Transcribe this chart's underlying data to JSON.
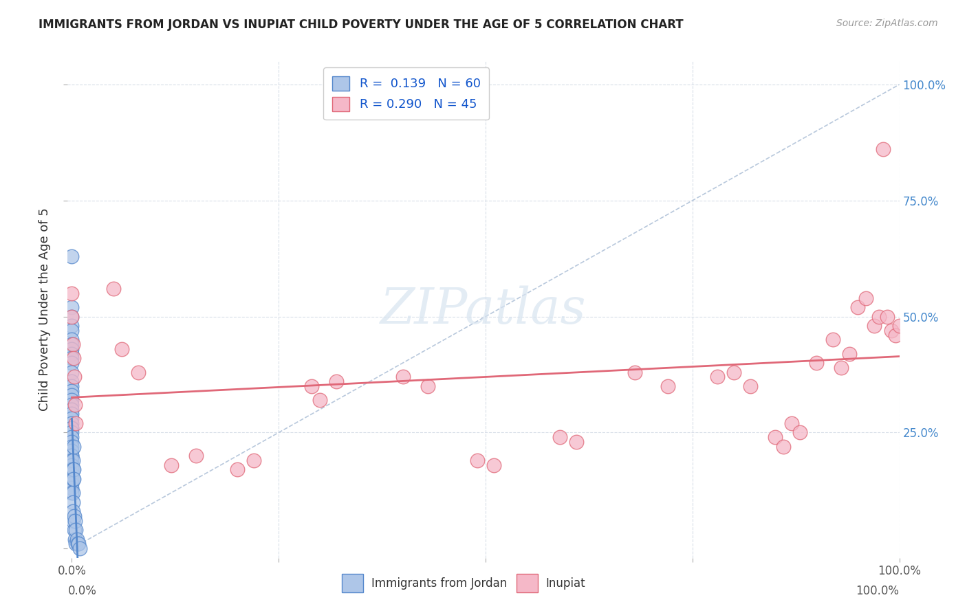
{
  "title": "IMMIGRANTS FROM JORDAN VS INUPIAT CHILD POVERTY UNDER THE AGE OF 5 CORRELATION CHART",
  "source": "Source: ZipAtlas.com",
  "ylabel": "Child Poverty Under the Age of 5",
  "legend_label1": "Immigrants from Jordan",
  "legend_label2": "Inupiat",
  "legend_R1": "R =  0.139",
  "legend_N1": "N = 60",
  "legend_R2": "R = 0.290",
  "legend_N2": "N = 45",
  "color_blue": "#aec6e8",
  "color_pink": "#f5b8c8",
  "color_blue_line": "#5588cc",
  "color_pink_line": "#e06878",
  "color_diag": "#b8c8dc",
  "color_grid": "#d8dee8",
  "watermark_color": "#d8e4f0",
  "watermark": "ZIPatlas",
  "background_color": "#ffffff",
  "blue_x": [
    0.0,
    0.0,
    0.0,
    0.0,
    0.0,
    0.0,
    0.0,
    0.0,
    0.0,
    0.0,
    0.0,
    0.0,
    0.0,
    0.0,
    0.0,
    0.0,
    0.0,
    0.0,
    0.0,
    0.0,
    0.0,
    0.0,
    0.0,
    0.0,
    0.0,
    0.0,
    0.0,
    0.0,
    0.0,
    0.0,
    0.0,
    0.0,
    0.0,
    0.0,
    0.0,
    0.0,
    0.0,
    0.0,
    0.0,
    0.0,
    0.001,
    0.001,
    0.001,
    0.001,
    0.001,
    0.001,
    0.001,
    0.002,
    0.002,
    0.002,
    0.003,
    0.003,
    0.004,
    0.004,
    0.005,
    0.005,
    0.006,
    0.007,
    0.008,
    0.01
  ],
  "blue_y": [
    0.63,
    0.52,
    0.5,
    0.48,
    0.47,
    0.45,
    0.44,
    0.43,
    0.42,
    0.41,
    0.4,
    0.38,
    0.36,
    0.35,
    0.34,
    0.33,
    0.32,
    0.31,
    0.3,
    0.29,
    0.28,
    0.27,
    0.26,
    0.26,
    0.25,
    0.24,
    0.23,
    0.22,
    0.21,
    0.2,
    0.2,
    0.19,
    0.18,
    0.17,
    0.17,
    0.16,
    0.15,
    0.14,
    0.13,
    0.12,
    0.19,
    0.17,
    0.15,
    0.12,
    0.1,
    0.08,
    0.06,
    0.22,
    0.17,
    0.15,
    0.07,
    0.04,
    0.06,
    0.02,
    0.04,
    0.01,
    0.02,
    0.01,
    0.01,
    0.0
  ],
  "pink_x": [
    0.0,
    0.0,
    0.001,
    0.002,
    0.003,
    0.004,
    0.005,
    0.05,
    0.06,
    0.08,
    0.12,
    0.15,
    0.2,
    0.22,
    0.29,
    0.3,
    0.32,
    0.4,
    0.43,
    0.49,
    0.51,
    0.59,
    0.61,
    0.68,
    0.72,
    0.78,
    0.8,
    0.82,
    0.85,
    0.86,
    0.87,
    0.88,
    0.9,
    0.92,
    0.93,
    0.94,
    0.95,
    0.96,
    0.97,
    0.975,
    0.98,
    0.985,
    0.99,
    0.995,
    1.0
  ],
  "pink_y": [
    0.55,
    0.5,
    0.44,
    0.41,
    0.37,
    0.31,
    0.27,
    0.56,
    0.43,
    0.38,
    0.18,
    0.2,
    0.17,
    0.19,
    0.35,
    0.32,
    0.36,
    0.37,
    0.35,
    0.19,
    0.18,
    0.24,
    0.23,
    0.38,
    0.35,
    0.37,
    0.38,
    0.35,
    0.24,
    0.22,
    0.27,
    0.25,
    0.4,
    0.45,
    0.39,
    0.42,
    0.52,
    0.54,
    0.48,
    0.5,
    0.86,
    0.5,
    0.47,
    0.46,
    0.48
  ]
}
